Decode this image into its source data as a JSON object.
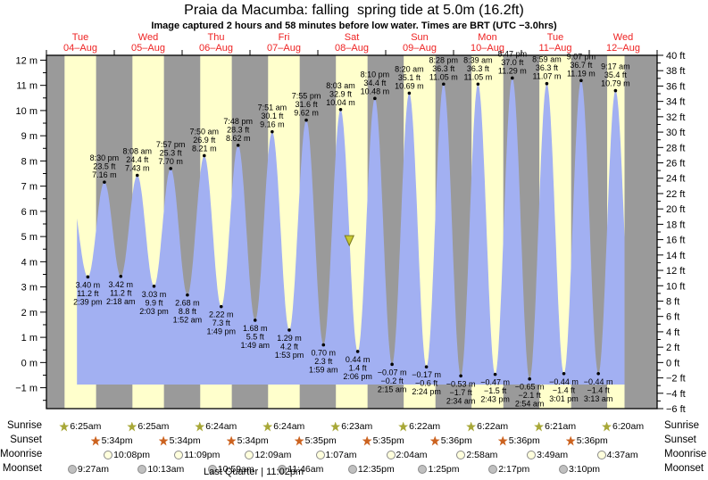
{
  "title": "Praia da Macumba: falling  spring tide at 5.0m (16.2ft)",
  "subtitle": "Image captured 2 hours and 58 minutes before low water. Times are BRT (UTC −3.0hrs)",
  "colors": {
    "night_band": "#9a9a9a",
    "day_band": "#ffffcc",
    "tide_area": "#a2b0f2",
    "day_label_red": "#ee2222",
    "frame": "#000000",
    "now_marker_fill": "#c8c832",
    "now_marker_stroke": "#7a7a20"
  },
  "chart_data": {
    "type": "area",
    "title": "Tide height curve over 9 days",
    "days": [
      {
        "dow": "Tue",
        "date": "04–Aug"
      },
      {
        "dow": "Wed",
        "date": "05–Aug"
      },
      {
        "dow": "Thu",
        "date": "06–Aug"
      },
      {
        "dow": "Fri",
        "date": "07–Aug"
      },
      {
        "dow": "Sat",
        "date": "08–Aug"
      },
      {
        "dow": "Sun",
        "date": "09–Aug"
      },
      {
        "dow": "Mon",
        "date": "10–Aug"
      },
      {
        "dow": "Tue",
        "date": "11–Aug"
      },
      {
        "dow": "Wed",
        "date": "12–Aug"
      }
    ],
    "y_left": {
      "unit": "m",
      "min": -1,
      "max": 12,
      "step": 1
    },
    "y_right": {
      "unit": "ft",
      "min": -6,
      "max": 40,
      "step": 2
    },
    "tide_events": [
      {
        "day": 0,
        "time": "2:39 pm",
        "type": "low",
        "m": 3.4,
        "m_label": "3.40 m",
        "ft_label": "11.2 ft"
      },
      {
        "day": 0,
        "time": "8:30 pm",
        "type": "high",
        "m": 7.16,
        "m_label": "7.16 m",
        "ft_label": "23.5 ft"
      },
      {
        "day": 1,
        "time": "2:18 am",
        "type": "low",
        "m": 3.42,
        "m_label": "3.42 m",
        "ft_label": "11.2 ft"
      },
      {
        "day": 1,
        "time": "8:08 am",
        "type": "high",
        "m": 7.43,
        "m_label": "7.43 m",
        "ft_label": "24.4 ft"
      },
      {
        "day": 1,
        "time": "2:03 pm",
        "type": "low",
        "m": 3.03,
        "m_label": "3.03 m",
        "ft_label": "9.9 ft"
      },
      {
        "day": 1,
        "time": "7:57 pm",
        "type": "high",
        "m": 7.7,
        "m_label": "7.70 m",
        "ft_label": "25.3 ft"
      },
      {
        "day": 2,
        "time": "1:52 am",
        "type": "low",
        "m": 2.68,
        "m_label": "2.68 m",
        "ft_label": "8.8 ft"
      },
      {
        "day": 2,
        "time": "7:50 am",
        "type": "high",
        "m": 8.21,
        "m_label": "8.21 m",
        "ft_label": "26.9 ft"
      },
      {
        "day": 2,
        "time": "1:49 pm",
        "type": "low",
        "m": 2.22,
        "m_label": "2.22 m",
        "ft_label": "7.3 ft"
      },
      {
        "day": 2,
        "time": "7:48 pm",
        "type": "high",
        "m": 8.62,
        "m_label": "8.62 m",
        "ft_label": "28.3 ft"
      },
      {
        "day": 3,
        "time": "1:49 am",
        "type": "low",
        "m": 1.68,
        "m_label": "1.68 m",
        "ft_label": "5.5 ft"
      },
      {
        "day": 3,
        "time": "7:51 am",
        "type": "high",
        "m": 9.16,
        "m_label": "9.16 m",
        "ft_label": "30.1 ft"
      },
      {
        "day": 3,
        "time": "1:53 pm",
        "type": "low",
        "m": 1.29,
        "m_label": "1.29 m",
        "ft_label": "4.2 ft"
      },
      {
        "day": 3,
        "time": "7:55 pm",
        "type": "high",
        "m": 9.62,
        "m_label": "9.62 m",
        "ft_label": "31.6 ft"
      },
      {
        "day": 4,
        "time": "1:59 am",
        "type": "low",
        "m": 0.7,
        "m_label": "0.70 m",
        "ft_label": "2.3 ft"
      },
      {
        "day": 4,
        "time": "8:03 am",
        "type": "high",
        "m": 10.04,
        "m_label": "10.04 m",
        "ft_label": "32.9 ft"
      },
      {
        "day": 4,
        "time": "2:06 pm",
        "type": "low",
        "m": 0.44,
        "m_label": "0.44 m",
        "ft_label": "1.4 ft"
      },
      {
        "day": 4,
        "time": "8:10 pm",
        "type": "high",
        "m": 10.48,
        "m_label": "10.48 m",
        "ft_label": "34.4 ft"
      },
      {
        "day": 5,
        "time": "2:15 am",
        "type": "low",
        "m": -0.07,
        "m_label": "−0.07 m",
        "ft_label": "−0.2 ft"
      },
      {
        "day": 5,
        "time": "8:20 am",
        "type": "high",
        "m": 10.69,
        "m_label": "10.69 m",
        "ft_label": "35.1 ft"
      },
      {
        "day": 5,
        "time": "2:24 pm",
        "type": "low",
        "m": -0.17,
        "m_label": "−0.17 m",
        "ft_label": "−0.6 ft"
      },
      {
        "day": 5,
        "time": "8:28 pm",
        "type": "high",
        "m": 11.05,
        "m_label": "11.05 m",
        "ft_label": "36.3 ft"
      },
      {
        "day": 6,
        "time": "2:34 am",
        "type": "low",
        "m": -0.53,
        "m_label": "−0.53 m",
        "ft_label": "−1.7 ft"
      },
      {
        "day": 6,
        "time": "8:39 am",
        "type": "high",
        "m": 11.05,
        "m_label": "11.05 m",
        "ft_label": "36.3 ft"
      },
      {
        "day": 6,
        "time": "2:43 pm",
        "type": "low",
        "m": -0.47,
        "m_label": "−0.47 m",
        "ft_label": "−1.5 ft"
      },
      {
        "day": 6,
        "time": "8:47 pm",
        "type": "high",
        "m": 11.29,
        "m_label": "11.29 m",
        "ft_label": "37.0 ft"
      },
      {
        "day": 7,
        "time": "2:54 am",
        "type": "low",
        "m": -0.65,
        "m_label": "−0.65 m",
        "ft_label": "−2.1 ft"
      },
      {
        "day": 7,
        "time": "8:59 am",
        "type": "high",
        "m": 11.07,
        "m_label": "11.07 m",
        "ft_label": "36.3 ft"
      },
      {
        "day": 7,
        "time": "3:01 pm",
        "type": "low",
        "m": -0.44,
        "m_label": "−0.44 m",
        "ft_label": "−1.4 ft"
      },
      {
        "day": 7,
        "time": "9:07 pm",
        "type": "high",
        "m": 11.19,
        "m_label": "11.19 m",
        "ft_label": "36.7 ft"
      },
      {
        "day": 8,
        "time": "3:13 am",
        "type": "low",
        "m": -0.44,
        "m_label": "−0.44 m",
        "ft_label": "−1.4 ft"
      },
      {
        "day": 8,
        "time": "9:17 am",
        "type": "high",
        "m": 10.79,
        "m_label": "10.79 m",
        "ft_label": "35.4 ft"
      }
    ],
    "now_marker": {
      "day": 4,
      "time": "11:08 am",
      "height_m": 5.0
    }
  },
  "sun_moon": {
    "rows": [
      {
        "label": "Sunrise",
        "icon": "sunrise-star",
        "shape": "star",
        "color": "#a8a838",
        "events": [
          {
            "day": 0,
            "time": "6:25am"
          },
          {
            "day": 1,
            "time": "6:25am"
          },
          {
            "day": 2,
            "time": "6:24am"
          },
          {
            "day": 3,
            "time": "6:24am"
          },
          {
            "day": 4,
            "time": "6:23am"
          },
          {
            "day": 5,
            "time": "6:22am"
          },
          {
            "day": 6,
            "time": "6:22am"
          },
          {
            "day": 7,
            "time": "6:21am"
          },
          {
            "day": 8,
            "time": "6:20am"
          }
        ]
      },
      {
        "label": "Sunset",
        "icon": "sunset-star",
        "shape": "star",
        "color": "#cc6320",
        "events": [
          {
            "day": 0,
            "time": "5:34pm"
          },
          {
            "day": 1,
            "time": "5:34pm"
          },
          {
            "day": 2,
            "time": "5:34pm"
          },
          {
            "day": 3,
            "time": "5:35pm"
          },
          {
            "day": 4,
            "time": "5:35pm"
          },
          {
            "day": 5,
            "time": "5:36pm"
          },
          {
            "day": 6,
            "time": "5:36pm"
          },
          {
            "day": 7,
            "time": "5:36pm"
          }
        ]
      },
      {
        "label": "Moonrise",
        "icon": "moonrise-circle",
        "shape": "circle",
        "color": "#ffffdd",
        "events": [
          {
            "day": 0,
            "time": "10:08pm"
          },
          {
            "day": 1,
            "time": "11:09pm"
          },
          {
            "day": 3,
            "time": "12:09am"
          },
          {
            "day": 4,
            "time": "1:07am"
          },
          {
            "day": 5,
            "time": "2:04am"
          },
          {
            "day": 6,
            "time": "2:58am"
          },
          {
            "day": 7,
            "time": "3:49am"
          },
          {
            "day": 8,
            "time": "4:37am"
          }
        ]
      },
      {
        "label": "Moonset",
        "icon": "moonset-circle",
        "shape": "circle",
        "color": "#c0c0c0",
        "events": [
          {
            "day": 0,
            "time": "9:27am"
          },
          {
            "day": 1,
            "time": "10:13am"
          },
          {
            "day": 2,
            "time": "10:59am"
          },
          {
            "day": 3,
            "time": "11:46am"
          },
          {
            "day": 4,
            "time": "12:35pm"
          },
          {
            "day": 5,
            "time": "1:25pm"
          },
          {
            "day": 6,
            "time": "2:17pm"
          },
          {
            "day": 7,
            "time": "3:10pm"
          }
        ]
      }
    ]
  },
  "footer": "Last Quarter | 11:02pm"
}
